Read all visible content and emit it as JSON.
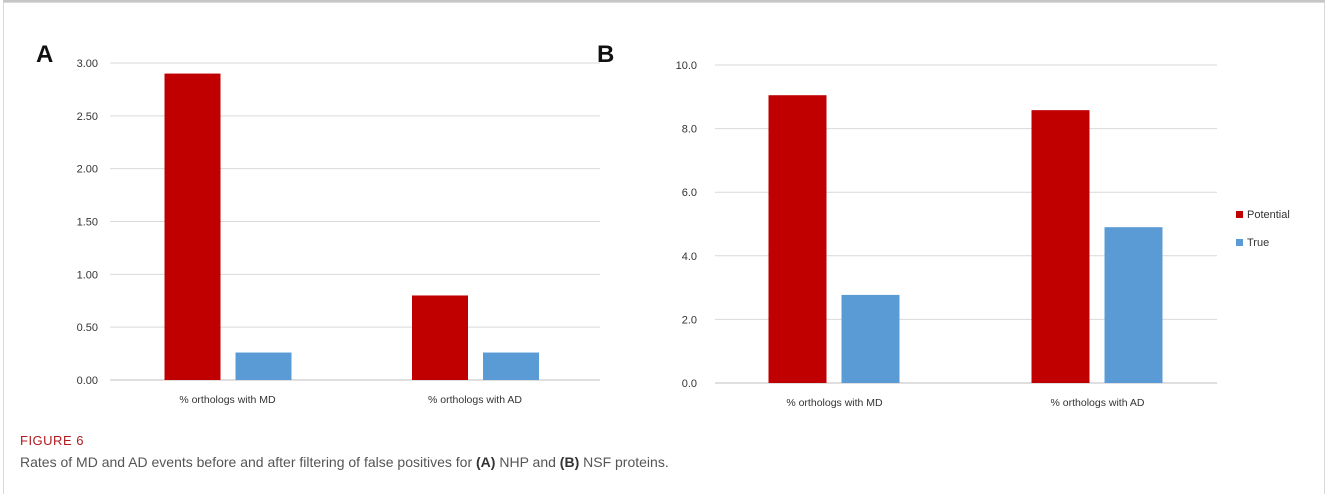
{
  "caption": {
    "label": "FIGURE 6",
    "text_1": "Rates of MD and AD events before and after filtering of false positives for ",
    "ref_a": "(A)",
    "text_2": " NHP and ",
    "ref_b": "(B)",
    "text_3": " NSF proteins."
  },
  "colors": {
    "potential": "#c00000",
    "true": "#5b9bd5"
  },
  "chart_data": [
    {
      "panel": "A",
      "type": "bar",
      "categories": [
        "% orthologs with MD",
        "% orthologs with AD"
      ],
      "series": [
        {
          "name": "Potential",
          "values": [
            2.9,
            0.8
          ]
        },
        {
          "name": "True",
          "values": [
            0.26,
            0.26
          ]
        }
      ],
      "ylim": [
        0,
        3
      ],
      "yticks": [
        "0.00",
        "0.50",
        "1.00",
        "1.50",
        "2.00",
        "2.50",
        "3.00"
      ],
      "grid": true,
      "legend": "none"
    },
    {
      "panel": "B",
      "type": "bar",
      "categories": [
        "% orthologs with MD",
        "% orthologs with AD"
      ],
      "series": [
        {
          "name": "Potential",
          "values": [
            9.05,
            8.58
          ]
        },
        {
          "name": "True",
          "values": [
            2.77,
            4.9
          ]
        }
      ],
      "ylim": [
        0,
        10
      ],
      "yticks": [
        "0.0",
        "2.0",
        "4.0",
        "6.0",
        "8.0",
        "10.0"
      ],
      "grid": true,
      "legend": "right"
    }
  ]
}
